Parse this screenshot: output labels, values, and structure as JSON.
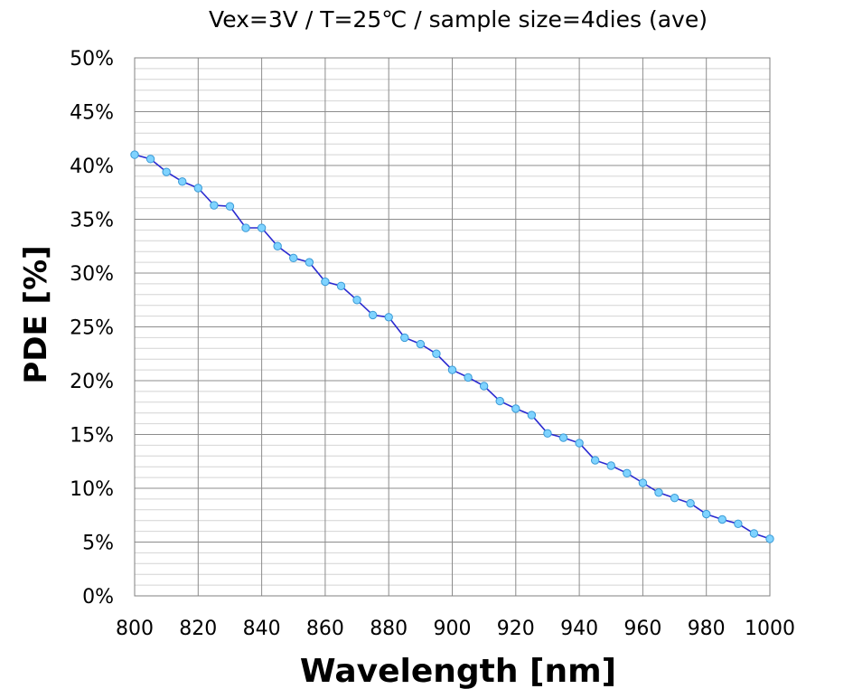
{
  "chart_data": {
    "type": "line",
    "title": "Vex=3V / T=25℃ / sample size=4dies (ave)",
    "xlabel": "Wavelength [nm]",
    "ylabel": "PDE [%]",
    "xlim": [
      800,
      1000
    ],
    "ylim": [
      0,
      50
    ],
    "x_ticks": [
      "800",
      "820",
      "840",
      "860",
      "880",
      "900",
      "920",
      "940",
      "960",
      "980",
      "1000"
    ],
    "y_ticks": [
      "0%",
      "5%",
      "10%",
      "15%",
      "20%",
      "25%",
      "30%",
      "35%",
      "40%",
      "45%",
      "50%"
    ],
    "grid": true,
    "legend": "none",
    "line_color": "#2a2ad0",
    "marker_color": "#7fd3ff",
    "series": [
      {
        "x": [
          800,
          805,
          810,
          815,
          820,
          825,
          830,
          835,
          840,
          845,
          850,
          855,
          860,
          865,
          870,
          875,
          880,
          885,
          890,
          895,
          900,
          905,
          910,
          915,
          920,
          925,
          930,
          935,
          940,
          945,
          950,
          955,
          960,
          965,
          970,
          975,
          980,
          985,
          990,
          995,
          1000
        ],
        "values": [
          41.0,
          40.6,
          39.4,
          38.5,
          37.9,
          36.3,
          36.2,
          34.2,
          34.2,
          32.5,
          31.4,
          31.0,
          29.2,
          28.8,
          27.5,
          26.1,
          25.9,
          24.0,
          23.4,
          22.5,
          21.0,
          20.3,
          19.5,
          18.1,
          17.4,
          16.8,
          15.1,
          14.7,
          14.2,
          12.6,
          12.1,
          11.4,
          10.5,
          9.6,
          9.1,
          8.6,
          7.6,
          7.1,
          6.7,
          5.8,
          5.3
        ]
      }
    ]
  }
}
